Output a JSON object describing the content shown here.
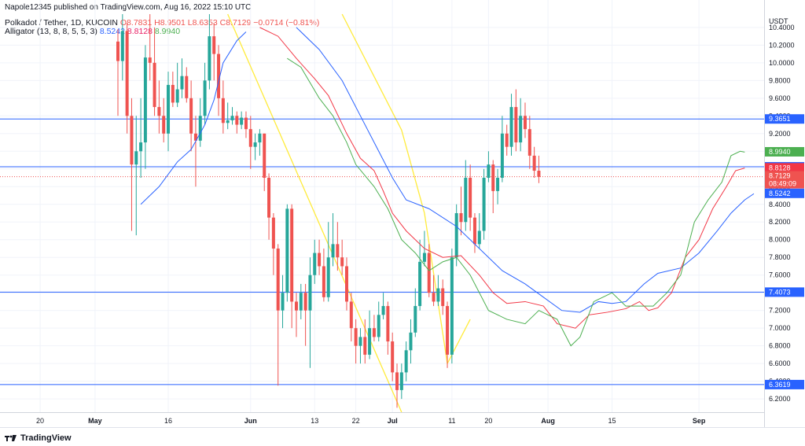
{
  "header": {
    "published": "Napole12345 published on TradingView.com, Aug 16, 2022 15:10 UTC",
    "symbol": "Polkadot / Tether, 1D, KUCOIN",
    "open": "O8.7831",
    "high": "H8.9501",
    "low": "L8.6353",
    "close": "C8.7129",
    "change": "−0.0714 (−0.81%)",
    "indicator": "Alligator (13, 8, 8, 5, 5, 3)",
    "jaw": "8.5242",
    "teeth": "8.8128",
    "lips": "8.9940"
  },
  "footer": {
    "brand": "TradingView",
    "logo_icon": "tradingview-logo-icon"
  },
  "colors": {
    "up": "#26a69a",
    "down": "#ef5350",
    "jaw": "#2962ff",
    "teeth": "#f23645",
    "lips": "#4caf50",
    "hline": "#2962ff",
    "trend": "#ffeb3b"
  },
  "chart_data": {
    "type": "candlestick",
    "title": "Polkadot / Tether, 1D, KUCOIN",
    "y_unit": "USDT",
    "ylim": [
      6.05,
      10.55
    ],
    "y_ticks": [
      "10.4000",
      "10.2000",
      "10.0000",
      "9.8000",
      "9.6000",
      "9.4000",
      "9.2000",
      "9.0000",
      "8.8000",
      "8.6000",
      "8.4000",
      "8.2000",
      "8.0000",
      "7.8000",
      "7.6000",
      "7.4000",
      "7.2000",
      "7.0000",
      "6.8000",
      "6.6000",
      "6.4000",
      "6.2000"
    ],
    "x_ticks": [
      "20",
      "May",
      "16",
      "Jun",
      "13",
      "22",
      "Jul",
      "11",
      "20",
      "Aug",
      "15",
      "Sep"
    ],
    "candles": [
      [
        10.24,
        10.02,
        10.38,
        9.4
      ],
      [
        10.02,
        10.36,
        10.55,
        9.8
      ],
      [
        10.36,
        9.4,
        10.45,
        9.2
      ],
      [
        9.4,
        8.85,
        9.6,
        8.1
      ],
      [
        8.85,
        9.0,
        9.4,
        8.05
      ],
      [
        9.0,
        9.1,
        9.6,
        8.7
      ],
      [
        9.1,
        10.06,
        10.2,
        8.8
      ],
      [
        10.06,
        10.0,
        10.55,
        9.8
      ],
      [
        10.0,
        9.5,
        10.4,
        9.4
      ],
      [
        9.5,
        9.4,
        9.8,
        9.2
      ],
      [
        9.4,
        9.2,
        9.6,
        9.1
      ],
      [
        9.2,
        9.75,
        9.9,
        9.0
      ],
      [
        9.75,
        9.55,
        9.9,
        9.5
      ],
      [
        9.55,
        9.7,
        10.0,
        9.5
      ],
      [
        9.7,
        9.85,
        10.05,
        9.6
      ],
      [
        9.85,
        9.6,
        9.95,
        9.55
      ],
      [
        9.6,
        9.2,
        9.8,
        9.0
      ],
      [
        9.2,
        9.12,
        9.4,
        8.6
      ],
      [
        9.12,
        9.4,
        9.6,
        9.05
      ],
      [
        9.4,
        9.8,
        10.0,
        9.3
      ],
      [
        9.8,
        10.3,
        10.55,
        9.7
      ],
      [
        10.3,
        10.1,
        10.45,
        9.8
      ],
      [
        10.1,
        9.6,
        10.2,
        9.4
      ],
      [
        9.6,
        9.32,
        9.8,
        9.2
      ],
      [
        9.32,
        9.35,
        9.55,
        9.25
      ],
      [
        9.35,
        9.4,
        9.5,
        9.3
      ],
      [
        9.4,
        9.3,
        9.45,
        9.2
      ],
      [
        9.3,
        9.38,
        9.45,
        9.25
      ],
      [
        9.38,
        9.25,
        9.45,
        9.15
      ],
      [
        9.25,
        9.05,
        9.4,
        8.8
      ],
      [
        9.05,
        9.1,
        9.2,
        8.9
      ],
      [
        9.1,
        9.2,
        9.25,
        8.95
      ],
      [
        9.2,
        8.7,
        9.2,
        8.55
      ],
      [
        8.7,
        8.25,
        8.75,
        8.0
      ],
      [
        8.25,
        7.9,
        8.3,
        7.6
      ],
      [
        7.9,
        7.2,
        7.95,
        6.35
      ],
      [
        7.2,
        7.4,
        7.6,
        7.0
      ],
      [
        7.4,
        8.35,
        8.4,
        7.3
      ],
      [
        8.35,
        7.3,
        8.4,
        7.0
      ],
      [
        7.3,
        7.2,
        7.4,
        6.9
      ],
      [
        7.2,
        7.4,
        7.5,
        7.1
      ],
      [
        7.4,
        7.2,
        7.5,
        6.8
      ],
      [
        7.2,
        7.6,
        7.8,
        6.55
      ],
      [
        7.6,
        7.85,
        8.0,
        7.5
      ],
      [
        7.85,
        7.7,
        8.0,
        7.6
      ],
      [
        7.7,
        7.35,
        7.9,
        7.3
      ],
      [
        7.35,
        7.8,
        8.2,
        7.3
      ],
      [
        7.8,
        7.95,
        8.3,
        7.7
      ],
      [
        7.95,
        7.8,
        8.2,
        7.65
      ],
      [
        7.8,
        7.7,
        8.0,
        7.6
      ],
      [
        7.7,
        7.3,
        7.8,
        7.2
      ],
      [
        7.3,
        7.0,
        7.4,
        6.85
      ],
      [
        7.0,
        6.8,
        7.1,
        6.6
      ],
      [
        6.8,
        6.9,
        7.0,
        6.6
      ],
      [
        6.9,
        6.7,
        7.1,
        6.6
      ],
      [
        6.7,
        7.0,
        7.2,
        6.65
      ],
      [
        7.0,
        6.9,
        7.15,
        6.85
      ],
      [
        6.9,
        7.15,
        7.3,
        6.85
      ],
      [
        7.15,
        7.25,
        7.4,
        7.1
      ],
      [
        7.25,
        6.85,
        7.3,
        6.7
      ],
      [
        6.85,
        6.5,
        6.95,
        6.4
      ],
      [
        6.5,
        6.3,
        6.6,
        6.1
      ],
      [
        6.3,
        6.5,
        6.6,
        6.2
      ],
      [
        6.5,
        6.75,
        6.85,
        6.4
      ],
      [
        6.75,
        6.95,
        7.1,
        6.6
      ],
      [
        6.95,
        7.25,
        7.45,
        6.9
      ],
      [
        7.25,
        7.75,
        8.0,
        7.2
      ],
      [
        7.75,
        7.85,
        8.1,
        7.7
      ],
      [
        7.85,
        7.4,
        7.95,
        7.35
      ],
      [
        7.4,
        7.3,
        7.6,
        7.25
      ],
      [
        7.3,
        7.45,
        7.6,
        7.25
      ],
      [
        7.45,
        7.25,
        7.55,
        7.15
      ],
      [
        7.25,
        6.7,
        7.3,
        6.55
      ],
      [
        6.7,
        7.8,
        7.9,
        6.6
      ],
      [
        7.8,
        8.3,
        8.4,
        7.7
      ],
      [
        8.3,
        8.2,
        8.6,
        8.05
      ],
      [
        8.2,
        8.7,
        8.9,
        8.1
      ],
      [
        8.7,
        8.25,
        8.85,
        8.1
      ],
      [
        8.25,
        7.95,
        8.3,
        7.85
      ],
      [
        7.95,
        8.1,
        8.3,
        7.9
      ],
      [
        8.1,
        8.7,
        8.8,
        8.0
      ],
      [
        8.7,
        8.85,
        9.0,
        8.65
      ],
      [
        8.85,
        8.55,
        8.9,
        8.3
      ],
      [
        8.55,
        8.7,
        8.8,
        8.4
      ],
      [
        8.7,
        9.2,
        9.4,
        8.65
      ],
      [
        9.2,
        9.05,
        9.3,
        8.95
      ],
      [
        9.05,
        9.5,
        9.65,
        8.95
      ],
      [
        9.5,
        9.1,
        9.7,
        9.0
      ],
      [
        9.1,
        9.4,
        9.6,
        9.0
      ],
      [
        9.4,
        9.25,
        9.55,
        9.15
      ],
      [
        9.25,
        8.95,
        9.4,
        8.8
      ],
      [
        8.95,
        8.78,
        9.05,
        8.7
      ],
      [
        8.78,
        8.71,
        8.95,
        8.64
      ]
    ],
    "alligator": {
      "jaw": [
        [
          5,
          8.4
        ],
        [
          9,
          8.6
        ],
        [
          13,
          8.88
        ],
        [
          16,
          9.02
        ],
        [
          19,
          9.3
        ],
        [
          21,
          9.58
        ],
        [
          23,
          10.0
        ],
        [
          26,
          10.25
        ],
        [
          28,
          10.35
        ]
      ],
      "jaw_main": [
        [
          39,
          10.4
        ],
        [
          44,
          10.15
        ],
        [
          49,
          9.8
        ],
        [
          53,
          9.4
        ],
        [
          57,
          9.0
        ],
        [
          60,
          8.7
        ],
        [
          63,
          8.45
        ],
        [
          68,
          8.35
        ],
        [
          74,
          8.15
        ],
        [
          79,
          7.9
        ],
        [
          84,
          7.65
        ],
        [
          89,
          7.5
        ],
        [
          93,
          7.35
        ],
        [
          97,
          7.2
        ],
        [
          101,
          7.18
        ],
        [
          105,
          7.3
        ],
        [
          108,
          7.28
        ],
        [
          111,
          7.3
        ],
        [
          115,
          7.5
        ],
        [
          118,
          7.62
        ],
        [
          123,
          7.68
        ],
        [
          127,
          7.85
        ],
        [
          131,
          8.1
        ],
        [
          134,
          8.3
        ],
        [
          137,
          8.45
        ],
        [
          139,
          8.52
        ]
      ],
      "teeth": [
        [
          31,
          10.4
        ],
        [
          35,
          10.3
        ],
        [
          39,
          10.05
        ],
        [
          43,
          9.82
        ],
        [
          46,
          9.63
        ],
        [
          50,
          9.2
        ],
        [
          53,
          8.92
        ],
        [
          56,
          8.78
        ],
        [
          58,
          8.55
        ],
        [
          60,
          8.3
        ],
        [
          63,
          8.1
        ],
        [
          67,
          7.9
        ],
        [
          71,
          7.8
        ],
        [
          75,
          7.82
        ],
        [
          79,
          7.6
        ],
        [
          82,
          7.4
        ],
        [
          85,
          7.28
        ],
        [
          89,
          7.3
        ],
        [
          93,
          7.25
        ],
        [
          96,
          7.05
        ],
        [
          100,
          7.0
        ],
        [
          103,
          7.15
        ],
        [
          107,
          7.18
        ],
        [
          111,
          7.22
        ],
        [
          114,
          7.3
        ],
        [
          116,
          7.2
        ],
        [
          118,
          7.23
        ],
        [
          121,
          7.4
        ],
        [
          124,
          7.8
        ],
        [
          127,
          8.0
        ],
        [
          130,
          8.35
        ],
        [
          133,
          8.6
        ],
        [
          135,
          8.78
        ],
        [
          137,
          8.81
        ]
      ],
      "lips": [
        [
          37,
          10.05
        ],
        [
          40,
          9.95
        ],
        [
          44,
          9.6
        ],
        [
          47,
          9.4
        ],
        [
          50,
          9.1
        ],
        [
          52,
          8.85
        ],
        [
          56,
          8.6
        ],
        [
          59,
          8.35
        ],
        [
          62,
          8.0
        ],
        [
          65,
          7.85
        ],
        [
          68,
          7.65
        ],
        [
          71,
          7.75
        ],
        [
          74,
          7.8
        ],
        [
          77,
          7.6
        ],
        [
          81,
          7.2
        ],
        [
          85,
          7.1
        ],
        [
          89,
          7.05
        ],
        [
          92,
          7.2
        ],
        [
          96,
          7.1
        ],
        [
          99,
          6.8
        ],
        [
          101,
          6.9
        ],
        [
          104,
          7.3
        ],
        [
          108,
          7.4
        ],
        [
          111,
          7.25
        ],
        [
          114,
          7.25
        ],
        [
          117,
          7.25
        ],
        [
          120,
          7.4
        ],
        [
          123,
          7.6
        ],
        [
          126,
          8.2
        ],
        [
          129,
          8.45
        ],
        [
          132,
          8.65
        ],
        [
          134,
          8.95
        ],
        [
          136,
          9.0
        ],
        [
          137,
          8.99
        ]
      ]
    },
    "horizontal_lines": [
      9.3651,
      8.8242,
      7.4073,
      6.3619
    ],
    "trend_lines": [
      [
        [
          24,
          10.55
        ],
        [
          62,
          6.05
        ]
      ],
      [
        [
          49,
          10.55
        ],
        [
          62,
          9.24
        ],
        [
          67,
          8.3
        ],
        [
          72,
          6.6
        ],
        [
          77,
          7.1
        ]
      ]
    ],
    "current_price": 8.7129,
    "price_labels": [
      {
        "text": "9.3651",
        "value": 9.3651,
        "color": "#2962ff"
      },
      {
        "text": "8.9940",
        "value": 8.994,
        "color": "#4caf50"
      },
      {
        "text": "8.8242",
        "value": 8.8242,
        "color": "#2962ff"
      },
      {
        "text": "8.8128",
        "value": 8.8128,
        "color": "#f23645"
      },
      {
        "text": "8.7129",
        "value": 8.7129,
        "color": "#ef5350",
        "sub": "08:49:09"
      },
      {
        "text": "8.5242",
        "value": 8.5242,
        "color": "#2962ff"
      },
      {
        "text": "7.4073",
        "value": 7.4073,
        "color": "#2962ff"
      },
      {
        "text": "6.3619",
        "value": 6.3619,
        "color": "#2962ff"
      }
    ]
  }
}
